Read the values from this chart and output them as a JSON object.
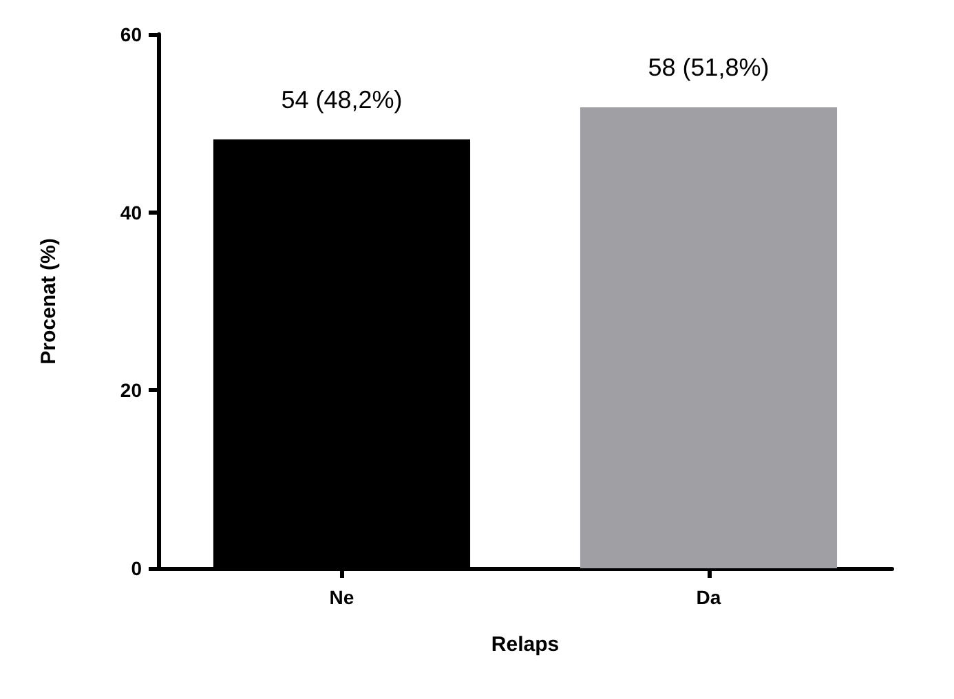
{
  "chart_data": {
    "type": "bar",
    "xlabel": "Relaps",
    "ylabel": "Procenat (%)",
    "categories": [
      "Ne",
      "Da"
    ],
    "values": [
      48.2,
      51.8
    ],
    "colors": [
      "#000000",
      "#a0a0a4"
    ],
    "value_labels": [
      "54 (48,2%)",
      "58 (51,8%)"
    ],
    "ylim": [
      0,
      60
    ],
    "yticks": [
      0,
      20,
      40,
      60
    ],
    "grid": false
  }
}
